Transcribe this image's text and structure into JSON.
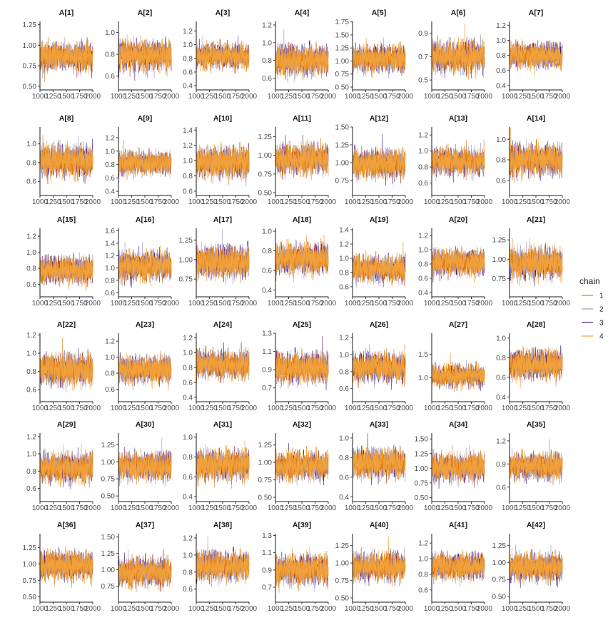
{
  "chart_data": {
    "type": "line",
    "subtype": "mcmc-traceplot-facets",
    "x_range": [
      1000,
      2000
    ],
    "x_ticks": [
      1000,
      1250,
      1500,
      1750,
      2000
    ],
    "x_tick_labels": [
      "1000",
      "1250",
      "1500",
      "1750",
      "2000"
    ],
    "grid": false,
    "legend": {
      "title": "chain",
      "placement": "right",
      "entries": [
        {
          "label": "1",
          "color": "#e07a14"
        },
        {
          "label": "2",
          "color": "#9b96c7"
        },
        {
          "label": "3",
          "color": "#4b1a7e"
        },
        {
          "label": "4",
          "color": "#f0a13c"
        }
      ]
    },
    "panels": [
      {
        "title": "A[1]",
        "ylim": [
          0.49,
          1.29
        ],
        "yticks": [
          0.5,
          0.75,
          1.0,
          1.25
        ],
        "ytick_labels": [
          "0.50",
          "0.75",
          "1.00",
          "1.25"
        ],
        "center": 0.86,
        "spread": 0.1
      },
      {
        "title": "A[2]",
        "ylim": [
          0.5,
          1.1
        ],
        "yticks": [
          0.6,
          0.8,
          1.0
        ],
        "ytick_labels": [
          "0.6",
          "0.8",
          "1.0"
        ],
        "center": 0.79,
        "spread": 0.08
      },
      {
        "title": "A[3]",
        "ylim": [
          0.38,
          1.34
        ],
        "yticks": [
          0.4,
          0.6,
          0.8,
          1.0,
          1.2
        ],
        "ytick_labels": [
          "0.4",
          "0.6",
          "0.8",
          "1.0",
          "1.2"
        ],
        "center": 0.83,
        "spread": 0.11
      },
      {
        "title": "A[4]",
        "ylim": [
          0.5,
          1.24
        ],
        "yticks": [
          0.6,
          0.8,
          1.0,
          1.2
        ],
        "ytick_labels": [
          "0.6",
          "0.8",
          "1.0",
          "1.2"
        ],
        "center": 0.8,
        "spread": 0.1
      },
      {
        "title": "A[5]",
        "ylim": [
          0.5,
          1.76
        ],
        "yticks": [
          0.5,
          0.75,
          1.0,
          1.25,
          1.5,
          1.75
        ],
        "ytick_labels": [
          "0.50",
          "0.75",
          "1.00",
          "1.25",
          "1.50",
          "1.75"
        ],
        "center": 1.04,
        "spread": 0.15
      },
      {
        "title": "A[6]",
        "ylim": [
          0.44,
          1.0
        ],
        "yticks": [
          0.5,
          0.7,
          0.9
        ],
        "ytick_labels": [
          "0.5",
          "0.7",
          "0.9"
        ],
        "center": 0.7,
        "spread": 0.08
      },
      {
        "title": "A[7]",
        "ylim": [
          0.38,
          1.25
        ],
        "yticks": [
          0.4,
          0.6,
          0.8,
          1.0,
          1.2
        ],
        "ytick_labels": [
          "0.4",
          "0.6",
          "0.8",
          "1.0",
          "1.2"
        ],
        "center": 0.8,
        "spread": 0.1
      },
      {
        "title": "A[8]",
        "ylim": [
          0.48,
          1.18
        ],
        "yticks": [
          0.6,
          0.8,
          1.0
        ],
        "ytick_labels": [
          "0.6",
          "0.8",
          "1.0"
        ],
        "center": 0.82,
        "spread": 0.1
      },
      {
        "title": "A[9]",
        "ylim": [
          0.38,
          1.36
        ],
        "yticks": [
          0.4,
          0.6,
          0.8,
          1.0,
          1.2
        ],
        "ytick_labels": [
          "0.4",
          "0.6",
          "0.8",
          "1.0",
          "1.2"
        ],
        "center": 0.82,
        "spread": 0.1
      },
      {
        "title": "A[10]",
        "ylim": [
          0.58,
          1.44
        ],
        "yticks": [
          0.6,
          0.8,
          1.0,
          1.2,
          1.4
        ],
        "ytick_labels": [
          "0.6",
          "0.8",
          "1.0",
          "1.2",
          "1.4"
        ],
        "center": 0.98,
        "spread": 0.12
      },
      {
        "title": "A[11]",
        "ylim": [
          0.5,
          1.38
        ],
        "yticks": [
          0.5,
          0.75,
          1.0,
          1.25
        ],
        "ytick_labels": [
          "0.50",
          "0.75",
          "1.00",
          "1.25"
        ],
        "center": 0.95,
        "spread": 0.12
      },
      {
        "title": "A[12]",
        "ylim": [
          0.58,
          1.5
        ],
        "yticks": [
          0.75,
          1.0,
          1.25,
          1.5
        ],
        "ytick_labels": [
          "0.75",
          "1.00",
          "1.25",
          "1.50"
        ],
        "center": 0.98,
        "spread": 0.12
      },
      {
        "title": "A[13]",
        "ylim": [
          0.48,
          1.3
        ],
        "yticks": [
          0.6,
          0.8,
          1.0,
          1.2
        ],
        "ytick_labels": [
          "0.6",
          "0.8",
          "1.0",
          "1.2"
        ],
        "center": 0.87,
        "spread": 0.1
      },
      {
        "title": "A[14]",
        "ylim": [
          0.48,
          1.12
        ],
        "yticks": [
          0.6,
          0.8,
          1.0
        ],
        "ytick_labels": [
          "0.6",
          "0.8",
          "1.0"
        ],
        "center": 0.8,
        "spread": 0.09
      },
      {
        "title": "A[15]",
        "ylim": [
          0.48,
          1.3
        ],
        "yticks": [
          0.6,
          0.8,
          1.0,
          1.2
        ],
        "ytick_labels": [
          "0.6",
          "0.8",
          "1.0",
          "1.2"
        ],
        "center": 0.78,
        "spread": 0.1
      },
      {
        "title": "A[16]",
        "ylim": [
          0.58,
          1.64
        ],
        "yticks": [
          0.6,
          0.8,
          1.0,
          1.2,
          1.4,
          1.6
        ],
        "ytick_labels": [
          "0.6",
          "0.8",
          "1.0",
          "1.2",
          "1.4",
          "1.6"
        ],
        "center": 1.03,
        "spread": 0.14
      },
      {
        "title": "A[17]",
        "ylim": [
          0.56,
          1.4
        ],
        "yticks": [
          0.75,
          1.0,
          1.25
        ],
        "ytick_labels": [
          "0.75",
          "1.00",
          "1.25"
        ],
        "center": 0.97,
        "spread": 0.12
      },
      {
        "title": "A[18]",
        "ylim": [
          0.36,
          1.03
        ],
        "yticks": [
          0.4,
          0.6,
          0.8,
          1.0
        ],
        "ytick_labels": [
          "0.4",
          "0.6",
          "0.8",
          "1.0"
        ],
        "center": 0.72,
        "spread": 0.09
      },
      {
        "title": "A[19]",
        "ylim": [
          0.5,
          1.42
        ],
        "yticks": [
          0.6,
          0.8,
          1.0,
          1.2,
          1.4
        ],
        "ytick_labels": [
          "0.6",
          "0.8",
          "1.0",
          "1.2",
          "1.4"
        ],
        "center": 0.85,
        "spread": 0.11
      },
      {
        "title": "A[20]",
        "ylim": [
          0.38,
          1.3
        ],
        "yticks": [
          0.4,
          0.6,
          0.8,
          1.0,
          1.2
        ],
        "ytick_labels": [
          "0.4",
          "0.6",
          "0.8",
          "1.0",
          "1.2"
        ],
        "center": 0.82,
        "spread": 0.11
      },
      {
        "title": "A[21]",
        "ylim": [
          0.55,
          1.4
        ],
        "yticks": [
          0.75,
          1.0,
          1.25
        ],
        "ytick_labels": [
          "0.75",
          "1.00",
          "1.25"
        ],
        "center": 0.95,
        "spread": 0.12
      },
      {
        "title": "A[22]",
        "ylim": [
          0.5,
          1.22
        ],
        "yticks": [
          0.6,
          0.8,
          1.0,
          1.2
        ],
        "ytick_labels": [
          "0.6",
          "0.8",
          "1.0",
          "1.2"
        ],
        "center": 0.82,
        "spread": 0.1
      },
      {
        "title": "A[23]",
        "ylim": [
          0.48,
          1.3
        ],
        "yticks": [
          0.6,
          0.8,
          1.0,
          1.2
        ],
        "ytick_labels": [
          "0.6",
          "0.8",
          "1.0",
          "1.2"
        ],
        "center": 0.85,
        "spread": 0.1
      },
      {
        "title": "A[24]",
        "ylim": [
          0.38,
          1.26
        ],
        "yticks": [
          0.4,
          0.6,
          0.8,
          1.0,
          1.2
        ],
        "ytick_labels": [
          "0.4",
          "0.6",
          "0.8",
          "1.0",
          "1.2"
        ],
        "center": 0.84,
        "spread": 0.11
      },
      {
        "title": "A[25]",
        "ylim": [
          0.58,
          1.3
        ],
        "yticks": [
          0.7,
          0.9,
          1.1,
          1.3
        ],
        "ytick_labels": [
          "0.7",
          "0.9",
          "1.1",
          "1.3"
        ],
        "center": 0.92,
        "spread": 0.1
      },
      {
        "title": "A[26]",
        "ylim": [
          0.48,
          1.25
        ],
        "yticks": [
          0.6,
          0.8,
          1.0,
          1.2
        ],
        "ytick_labels": [
          "0.6",
          "0.8",
          "1.0",
          "1.2"
        ],
        "center": 0.85,
        "spread": 0.1
      },
      {
        "title": "A[27]",
        "ylim": [
          0.55,
          1.95
        ],
        "yticks": [
          1.0,
          1.5
        ],
        "ytick_labels": [
          "1.0",
          "1.5"
        ],
        "center": 1.04,
        "spread": 0.14
      },
      {
        "title": "A[28]",
        "ylim": [
          0.38,
          1.05
        ],
        "yticks": [
          0.4,
          0.6,
          0.8,
          1.0
        ],
        "ytick_labels": [
          "0.4",
          "0.6",
          "0.8",
          "1.0"
        ],
        "center": 0.73,
        "spread": 0.09
      },
      {
        "title": "A[29]",
        "ylim": [
          0.48,
          1.24
        ],
        "yticks": [
          0.6,
          0.8,
          1.0,
          1.2
        ],
        "ytick_labels": [
          "0.6",
          "0.8",
          "1.0",
          "1.2"
        ],
        "center": 0.84,
        "spread": 0.1
      },
      {
        "title": "A[30]",
        "ylim": [
          0.46,
          1.42
        ],
        "yticks": [
          0.5,
          0.75,
          1.0,
          1.25
        ],
        "ytick_labels": [
          "0.50",
          "0.75",
          "1.00",
          "1.25"
        ],
        "center": 0.93,
        "spread": 0.12
      },
      {
        "title": "A[31]",
        "ylim": [
          0.38,
          1.04
        ],
        "yticks": [
          0.4,
          0.6,
          0.8,
          1.0
        ],
        "ytick_labels": [
          "0.4",
          "0.6",
          "0.8",
          "1.0"
        ],
        "center": 0.72,
        "spread": 0.09
      },
      {
        "title": "A[32]",
        "ylim": [
          0.48,
          1.42
        ],
        "yticks": [
          0.5,
          0.75,
          1.0,
          1.25
        ],
        "ytick_labels": [
          "0.50",
          "0.75",
          "1.00",
          "1.25"
        ],
        "center": 0.95,
        "spread": 0.12
      },
      {
        "title": "A[33]",
        "ylim": [
          0.38,
          1.05
        ],
        "yticks": [
          0.4,
          0.6,
          0.8,
          1.0
        ],
        "ytick_labels": [
          "0.4",
          "0.6",
          "0.8",
          "1.0"
        ],
        "center": 0.74,
        "spread": 0.09
      },
      {
        "title": "A[34]",
        "ylim": [
          0.48,
          1.6
        ],
        "yticks": [
          0.5,
          0.75,
          1.0,
          1.25,
          1.5
        ],
        "ytick_labels": [
          "0.50",
          "0.75",
          "1.00",
          "1.25",
          "1.50"
        ],
        "center": 1.02,
        "spread": 0.14
      },
      {
        "title": "A[35]",
        "ylim": [
          0.45,
          1.3
        ],
        "yticks": [
          0.6,
          0.9,
          1.2
        ],
        "ytick_labels": [
          "0.6",
          "0.9",
          "1.2"
        ],
        "center": 0.87,
        "spread": 0.1
      },
      {
        "title": "A[36]",
        "ylim": [
          0.46,
          1.46
        ],
        "yticks": [
          0.5,
          0.75,
          1.0,
          1.25
        ],
        "ytick_labels": [
          "0.50",
          "0.75",
          "1.00",
          "1.25"
        ],
        "center": 0.98,
        "spread": 0.13
      },
      {
        "title": "A[37]",
        "ylim": [
          0.55,
          1.55
        ],
        "yticks": [
          0.75,
          1.0,
          1.25,
          1.5
        ],
        "ytick_labels": [
          "0.75",
          "1.00",
          "1.25",
          "1.50"
        ],
        "center": 0.96,
        "spread": 0.13
      },
      {
        "title": "A[38]",
        "ylim": [
          0.48,
          1.25
        ],
        "yticks": [
          0.6,
          0.8,
          1.0,
          1.2
        ],
        "ytick_labels": [
          "0.6",
          "0.8",
          "1.0",
          "1.2"
        ],
        "center": 0.87,
        "spread": 0.1
      },
      {
        "title": "A[39]",
        "ylim": [
          0.56,
          1.32
        ],
        "yticks": [
          0.7,
          0.9,
          1.1,
          1.3
        ],
        "ytick_labels": [
          "0.7",
          "0.9",
          "1.1",
          "1.3"
        ],
        "center": 0.9,
        "spread": 0.1
      },
      {
        "title": "A[40]",
        "ylim": [
          0.48,
          1.42
        ],
        "yticks": [
          0.5,
          0.75,
          1.0,
          1.25
        ],
        "ytick_labels": [
          "0.50",
          "0.75",
          "1.00",
          "1.25"
        ],
        "center": 0.95,
        "spread": 0.12
      },
      {
        "title": "A[41]",
        "ylim": [
          0.48,
          1.32
        ],
        "yticks": [
          0.6,
          0.8,
          1.0,
          1.2
        ],
        "ytick_labels": [
          "0.6",
          "0.8",
          "1.0",
          "1.2"
        ],
        "center": 0.9,
        "spread": 0.1
      },
      {
        "title": "A[42]",
        "ylim": [
          0.46,
          1.42
        ],
        "yticks": [
          0.5,
          0.75,
          1.0,
          1.25
        ],
        "ytick_labels": [
          "0.50",
          "0.75",
          "1.00",
          "1.25"
        ],
        "center": 0.93,
        "spread": 0.12
      }
    ]
  }
}
